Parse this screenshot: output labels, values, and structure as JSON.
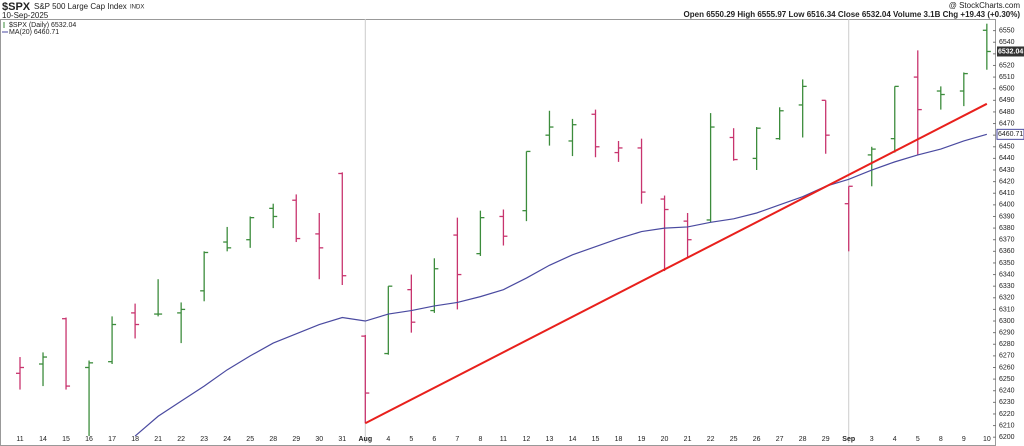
{
  "chart_data": {
    "type": "ohlc",
    "symbol": "$SPX",
    "title": "S&P 500 Large Cap Index",
    "exchange": "INDX",
    "date": "10-Sep-2025",
    "credit": "@ StockCharts.com",
    "quote": "Open 6550.29 High 6555.97 Low 6516.34 Close 6532.04 Volume 3.1B Chg +19.43 (+0.30%)",
    "categories": [
      "11",
      "14",
      "15",
      "16",
      "17",
      "18",
      "21",
      "22",
      "23",
      "24",
      "25",
      "28",
      "29",
      "30",
      "31",
      "Aug",
      "4",
      "5",
      "6",
      "7",
      "8",
      "11",
      "12",
      "13",
      "14",
      "15",
      "18",
      "19",
      "20",
      "21",
      "22",
      "25",
      "26",
      "27",
      "28",
      "29",
      "Sep",
      "3",
      "4",
      "5",
      "8",
      "9",
      "10"
    ],
    "series": [
      {
        "name": "$SPX (Daily) 6532.04",
        "up_color": "#3c8c3c",
        "down_color": "#c8346e",
        "open": [
          6255,
          6263,
          6302,
          6260,
          6265,
          6307,
          6306,
          6307,
          6326,
          6368,
          6370,
          6397,
          6404,
          6375,
          6427,
          6287,
          6272,
          6327,
          6309,
          6374,
          6358,
          6390,
          6395,
          6460,
          6455,
          6478,
          6445,
          6449,
          6405,
          6386,
          6387,
          6458,
          6440,
          6457,
          6486,
          6490,
          6401,
          6443,
          6457,
          6510,
          6498,
          6498,
          6550.29
        ],
        "high": [
          6269,
          6273,
          6303,
          6266,
          6304,
          6315,
          6336,
          6316,
          6360,
          6381,
          6390,
          6401,
          6409,
          6393,
          6428,
          6288,
          6330,
          6340,
          6354,
          6389,
          6395,
          6396,
          6446,
          6481,
          6474,
          6482,
          6455,
          6457,
          6408,
          6393,
          6479,
          6466,
          6467,
          6484,
          6508,
          6490,
          6416,
          6450,
          6502,
          6533,
          6502,
          6514,
          6555.97
        ],
        "low": [
          6241,
          6244,
          6241,
          6201,
          6263,
          6285,
          6304,
          6281,
          6317,
          6360,
          6363,
          6380,
          6368,
          6336,
          6331,
          6212,
          6271,
          6290,
          6307,
          6310,
          6356,
          6365,
          6386,
          6451,
          6442,
          6441,
          6437,
          6401,
          6343,
          6355,
          6385,
          6438,
          6430,
          6456,
          6458,
          6444,
          6360,
          6416,
          6445,
          6443,
          6482,
          6485,
          6516.34
        ],
        "close": [
          6260,
          6269,
          6244,
          6264,
          6297,
          6297,
          6306,
          6310,
          6359,
          6363,
          6389,
          6390,
          6371,
          6363,
          6339,
          6238,
          6330,
          6299,
          6345,
          6340,
          6389,
          6373,
          6446,
          6467,
          6469,
          6450,
          6449,
          6411,
          6396,
          6370,
          6467,
          6439,
          6466,
          6481,
          6502,
          6460,
          6416,
          6448,
          6502,
          6482,
          6495,
          6513,
          6532.04
        ],
        "colors": [
          "down",
          "up",
          "down",
          "up",
          "up",
          "down",
          "up",
          "up",
          "up",
          "up",
          "up",
          "up",
          "down",
          "down",
          "down",
          "down",
          "up",
          "down",
          "up",
          "down",
          "up",
          "down",
          "up",
          "up",
          "up",
          "down",
          "down",
          "down",
          "down",
          "down",
          "up",
          "down",
          "up",
          "up",
          "up",
          "down",
          "down",
          "up",
          "up",
          "down",
          "up",
          "up",
          "up"
        ]
      },
      {
        "name": "MA(20) 6460.71",
        "color": "#4a4aa0",
        "values": [
          null,
          null,
          null,
          null,
          null,
          6201,
          6218,
          6231,
          6244,
          6258,
          6270,
          6281,
          6289,
          6297,
          6303,
          6300,
          6306,
          6309,
          6313,
          6316,
          6321,
          6327,
          6337,
          6348,
          6357,
          6364,
          6371,
          6377,
          6380,
          6381,
          6385,
          6388,
          6393,
          6400,
          6407,
          6416,
          6422,
          6430,
          6437,
          6443,
          6448,
          6455,
          6460.71
        ]
      }
    ],
    "trendline": {
      "color": "#e8201c",
      "from": {
        "category": "Aug",
        "value": 6212
      },
      "to": {
        "category": "10",
        "value": 6487
      }
    },
    "ylim": [
      6195,
      6560
    ],
    "yticks": [
      6200,
      6210,
      6220,
      6230,
      6240,
      6250,
      6260,
      6270,
      6280,
      6290,
      6300,
      6310,
      6320,
      6330,
      6340,
      6350,
      6360,
      6370,
      6380,
      6390,
      6400,
      6410,
      6420,
      6430,
      6440,
      6450,
      6460,
      6470,
      6480,
      6490,
      6500,
      6510,
      6520,
      6530,
      6540,
      6550
    ]
  }
}
